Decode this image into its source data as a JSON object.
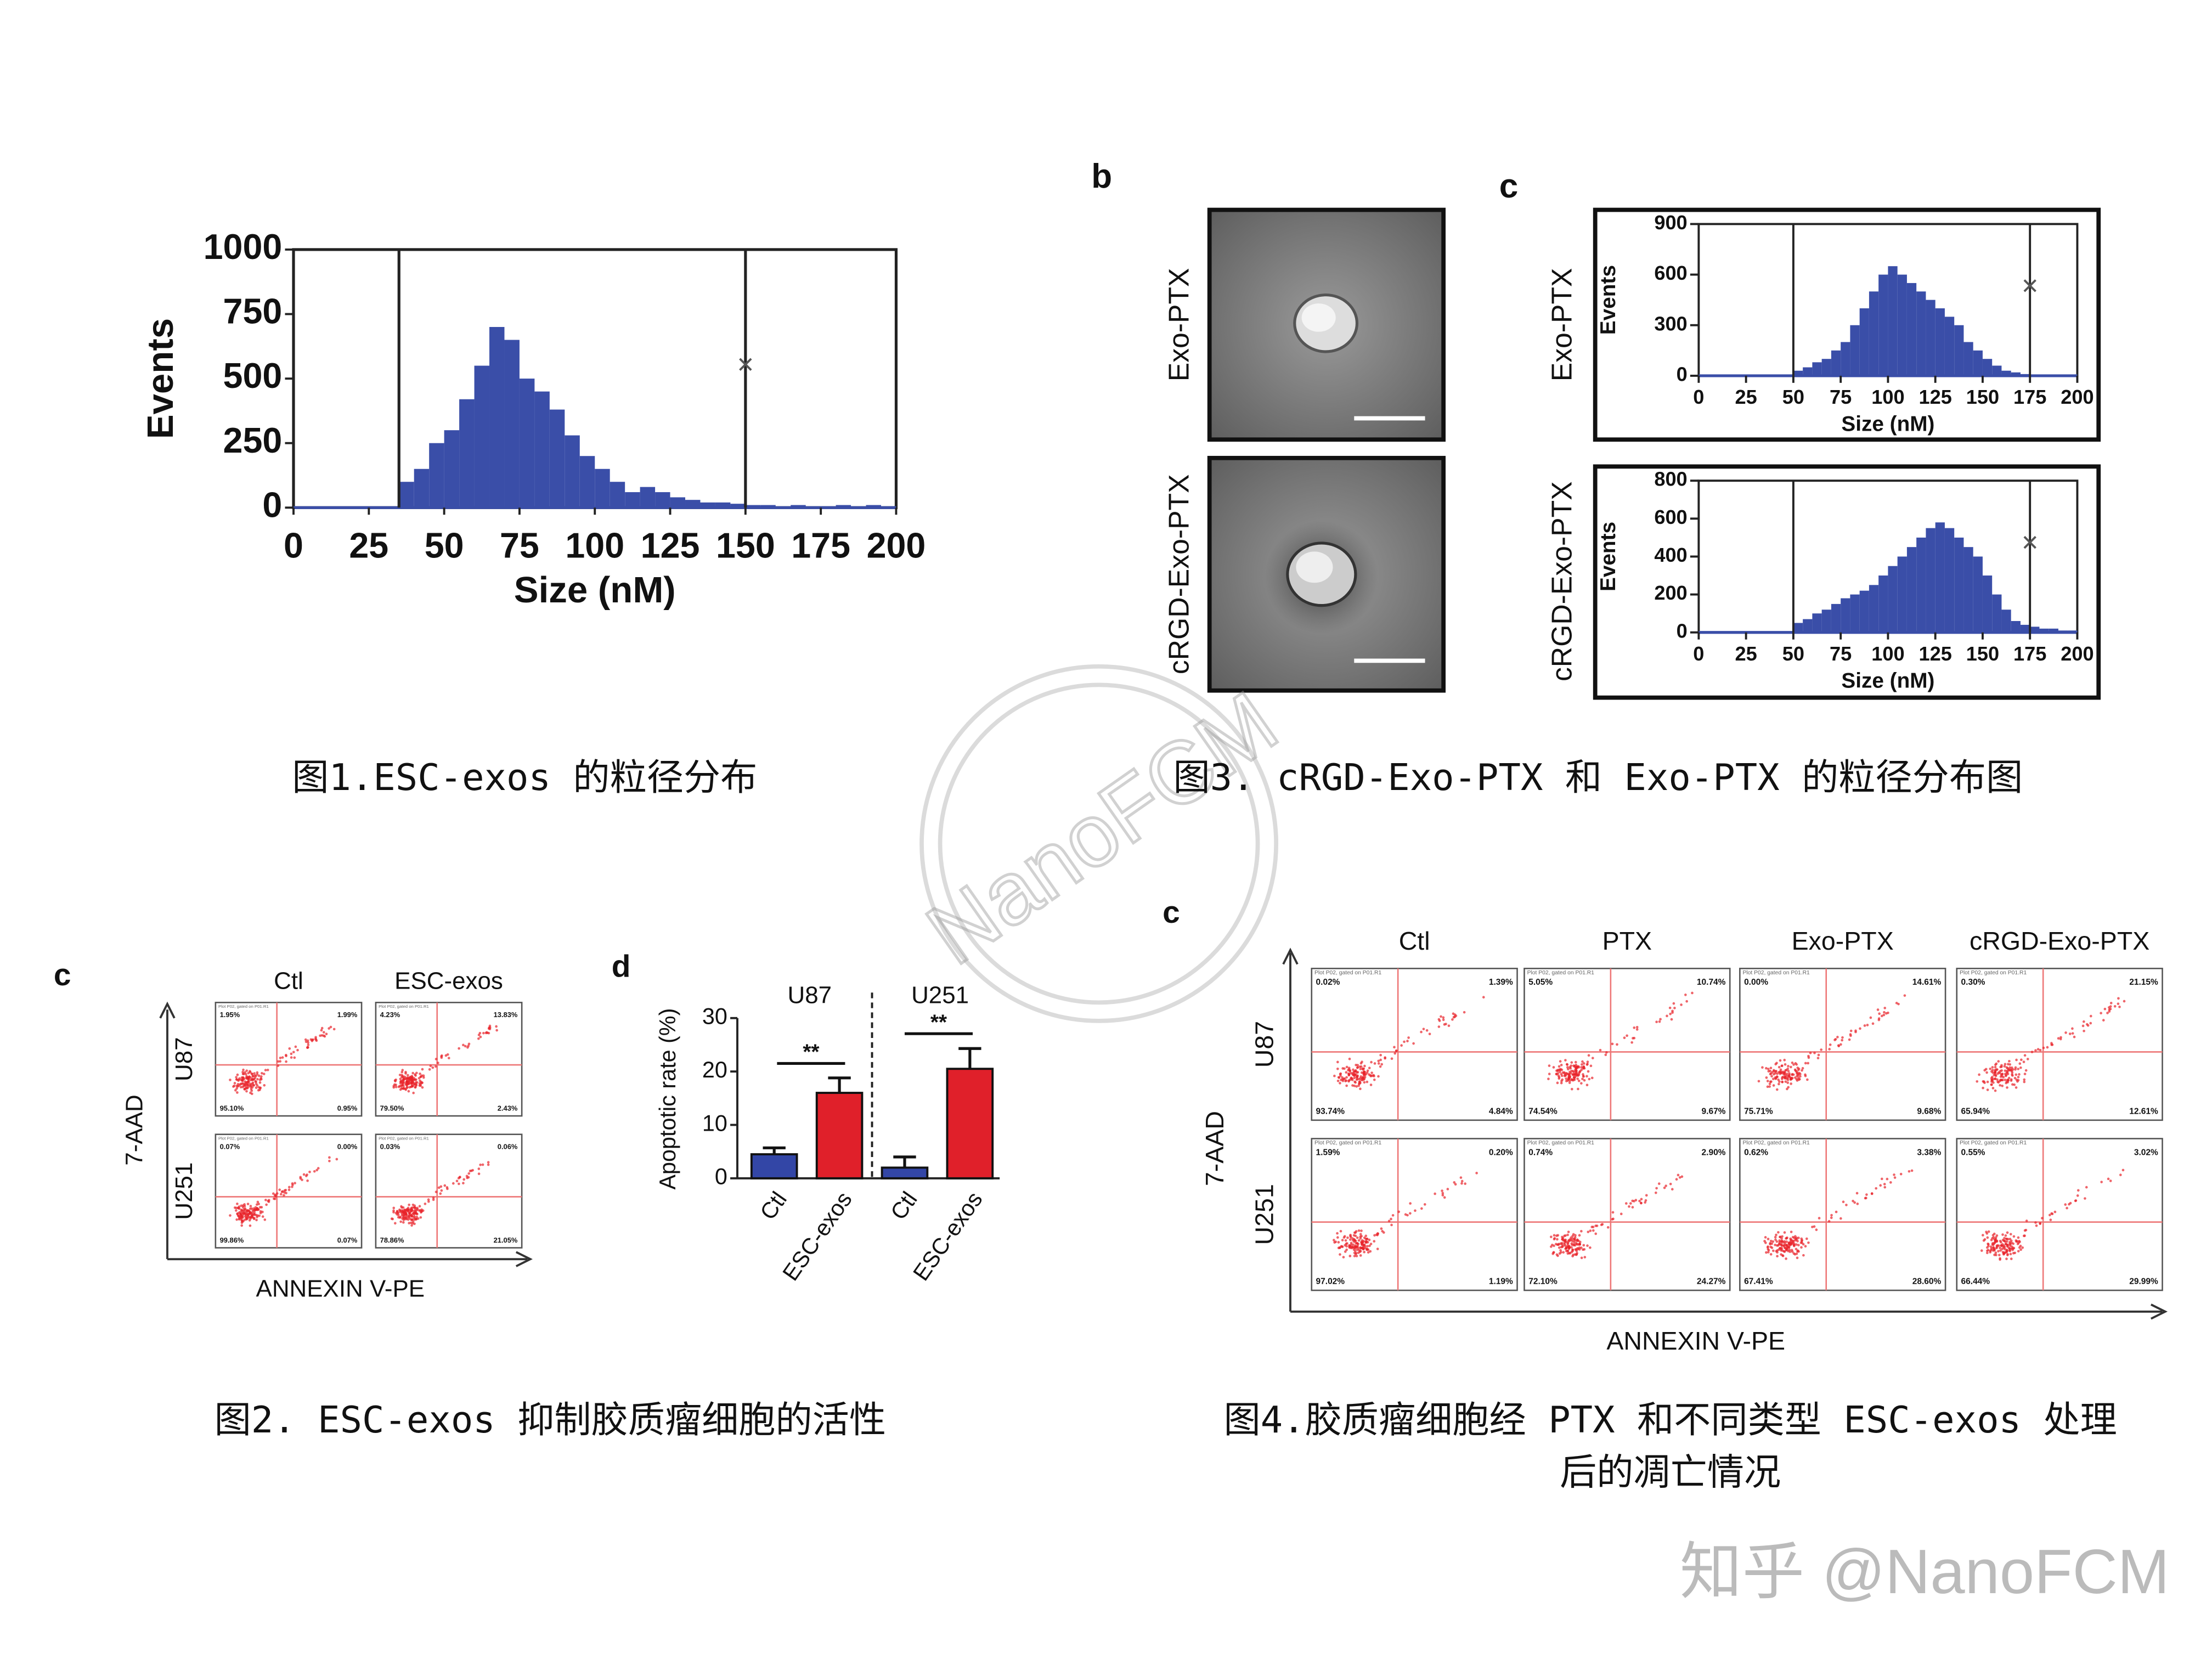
{
  "panel_letters": [
    "b",
    "c",
    "c",
    "d",
    "c"
  ],
  "fig1": {
    "chart_data": {
      "type": "histogram",
      "xlabel": "Size (nM)",
      "ylabel": "Events",
      "color": "#3a4ea8",
      "bins": [
        0,
        5,
        10,
        15,
        20,
        25,
        30,
        35,
        40,
        45,
        50,
        55,
        60,
        65,
        70,
        75,
        80,
        85,
        90,
        95,
        100,
        105,
        110,
        115,
        120,
        125,
        130,
        135,
        140,
        145,
        150,
        155,
        160,
        165,
        170,
        175,
        180,
        185,
        190,
        195,
        200
      ],
      "counts": [
        0,
        0,
        0,
        0,
        0,
        0,
        0,
        100,
        150,
        250,
        300,
        420,
        550,
        700,
        650,
        500,
        450,
        380,
        280,
        200,
        150,
        100,
        60,
        80,
        60,
        40,
        30,
        20,
        20,
        15,
        10,
        10,
        5,
        10,
        5,
        5,
        10,
        5,
        10,
        5
      ],
      "xlim": [
        0,
        200
      ],
      "xticks": [
        0,
        25,
        50,
        75,
        100,
        125,
        150,
        175,
        200
      ],
      "ylim": [
        0,
        1000
      ],
      "yticks": [
        0,
        250,
        500,
        750,
        1000
      ],
      "gates": [
        35,
        150
      ]
    },
    "caption": "图1.ESC-exos 的粒径分布"
  },
  "fig3": {
    "tem_labels": [
      "Exo-PTX",
      "cRGD-Exo-PTX"
    ],
    "charts": [
      {
        "chart_data": {
          "type": "histogram",
          "name": "Exo-PTX",
          "xlabel": "Size (nM)",
          "ylabel": "Events",
          "color": "#3a4ea8",
          "bins": [
            0,
            5,
            10,
            15,
            20,
            25,
            30,
            35,
            40,
            45,
            50,
            55,
            60,
            65,
            70,
            75,
            80,
            85,
            90,
            95,
            100,
            105,
            110,
            115,
            120,
            125,
            130,
            135,
            140,
            145,
            150,
            155,
            160,
            165,
            170,
            175,
            180,
            185,
            190,
            195,
            200
          ],
          "counts": [
            0,
            0,
            0,
            0,
            0,
            0,
            0,
            0,
            0,
            0,
            30,
            50,
            80,
            100,
            150,
            200,
            300,
            400,
            500,
            600,
            650,
            600,
            550,
            500,
            450,
            400,
            350,
            300,
            200,
            150,
            100,
            60,
            30,
            20,
            10,
            0,
            0,
            0,
            0,
            0
          ],
          "xlim": [
            0,
            200
          ],
          "xticks": [
            0,
            25,
            50,
            75,
            100,
            125,
            150,
            175,
            200
          ],
          "ylim": [
            0,
            900
          ],
          "yticks": [
            0,
            300,
            600,
            900
          ],
          "gates": [
            50,
            175
          ]
        }
      },
      {
        "chart_data": {
          "type": "histogram",
          "name": "cRGD-Exo-PTX",
          "xlabel": "Size (nM)",
          "ylabel": "Events",
          "color": "#3a4ea8",
          "bins": [
            0,
            5,
            10,
            15,
            20,
            25,
            30,
            35,
            40,
            45,
            50,
            55,
            60,
            65,
            70,
            75,
            80,
            85,
            90,
            95,
            100,
            105,
            110,
            115,
            120,
            125,
            130,
            135,
            140,
            145,
            150,
            155,
            160,
            165,
            170,
            175,
            180,
            185,
            190,
            195,
            200
          ],
          "counts": [
            0,
            0,
            0,
            0,
            0,
            0,
            0,
            0,
            0,
            0,
            50,
            70,
            100,
            120,
            150,
            180,
            200,
            220,
            250,
            300,
            350,
            400,
            450,
            500,
            550,
            580,
            550,
            500,
            450,
            400,
            300,
            200,
            120,
            60,
            40,
            30,
            20,
            20,
            10,
            10
          ],
          "xlim": [
            0,
            200
          ],
          "xticks": [
            0,
            25,
            50,
            75,
            100,
            125,
            150,
            175,
            200
          ],
          "ylim": [
            0,
            800
          ],
          "yticks": [
            0,
            200,
            400,
            600,
            800
          ],
          "gates": [
            50,
            175
          ]
        }
      }
    ],
    "caption": "图3. cRGD-Exo-PTX 和 Exo-PTX 的粒径分布图"
  },
  "fig2": {
    "flow": {
      "columns": [
        "Ctl",
        "ESC-exos"
      ],
      "rows": [
        "U87",
        "U251"
      ],
      "ylabel": "7-AAD",
      "xlabel": "ANNEXIN V-PE",
      "plot_header": "Plot P02, gated on P01.R1",
      "quadrants": [
        [
          [
            "1.95%",
            "1.99%",
            "95.10%",
            "0.95%"
          ],
          [
            "4.23%",
            "13.83%",
            "79.50%",
            "2.43%"
          ]
        ],
        [
          [
            "0.07%",
            "0.00%",
            "99.86%",
            "0.07%"
          ],
          [
            "0.03%",
            "0.06%",
            "78.86%",
            "21.05%"
          ]
        ]
      ]
    },
    "chart_data": {
      "type": "bar",
      "ylabel": "Apoptotic rate (%)",
      "groups": [
        "U87",
        "U251"
      ],
      "categories": [
        "Ctl",
        "ESC-exos",
        "Ctl",
        "ESC-exos"
      ],
      "values": [
        4.5,
        16,
        2,
        20.5
      ],
      "errors": [
        1.2,
        2.8,
        2,
        3.8
      ],
      "colors": [
        "#3346a6",
        "#e0202a",
        "#3346a6",
        "#e0202a"
      ],
      "ylim": [
        0,
        30
      ],
      "yticks": [
        0,
        10,
        20,
        30
      ],
      "annotations": [
        "**",
        "**"
      ]
    },
    "caption": "图2. ESC-exos 抑制胶质瘤细胞的活性"
  },
  "fig4": {
    "flow": {
      "columns": [
        "Ctl",
        "PTX",
        "Exo-PTX",
        "cRGD-Exo-PTX"
      ],
      "rows": [
        "U87",
        "U251"
      ],
      "ylabel": "7-AAD",
      "xlabel": "ANNEXIN V-PE",
      "plot_header": "Plot P02, gated on P01.R1",
      "quadrants": [
        [
          [
            "0.02%",
            "1.39%",
            "93.74%",
            "4.84%"
          ],
          [
            "5.05%",
            "10.74%",
            "74.54%",
            "9.67%"
          ],
          [
            "0.00%",
            "14.61%",
            "75.71%",
            "9.68%"
          ],
          [
            "0.30%",
            "21.15%",
            "65.94%",
            "12.61%"
          ]
        ],
        [
          [
            "1.59%",
            "0.20%",
            "97.02%",
            "1.19%"
          ],
          [
            "0.74%",
            "2.90%",
            "72.10%",
            "24.27%"
          ],
          [
            "0.62%",
            "3.38%",
            "67.41%",
            "28.60%"
          ],
          [
            "0.55%",
            "3.02%",
            "66.44%",
            "29.99%"
          ]
        ]
      ]
    },
    "caption_lines": [
      "图4.胶质瘤细胞经 PTX 和不同类型 ESC-exos 处理",
      "后的凋亡情况"
    ]
  },
  "watermark": "NanoFCM",
  "footer": "知乎 @NanoFCM"
}
